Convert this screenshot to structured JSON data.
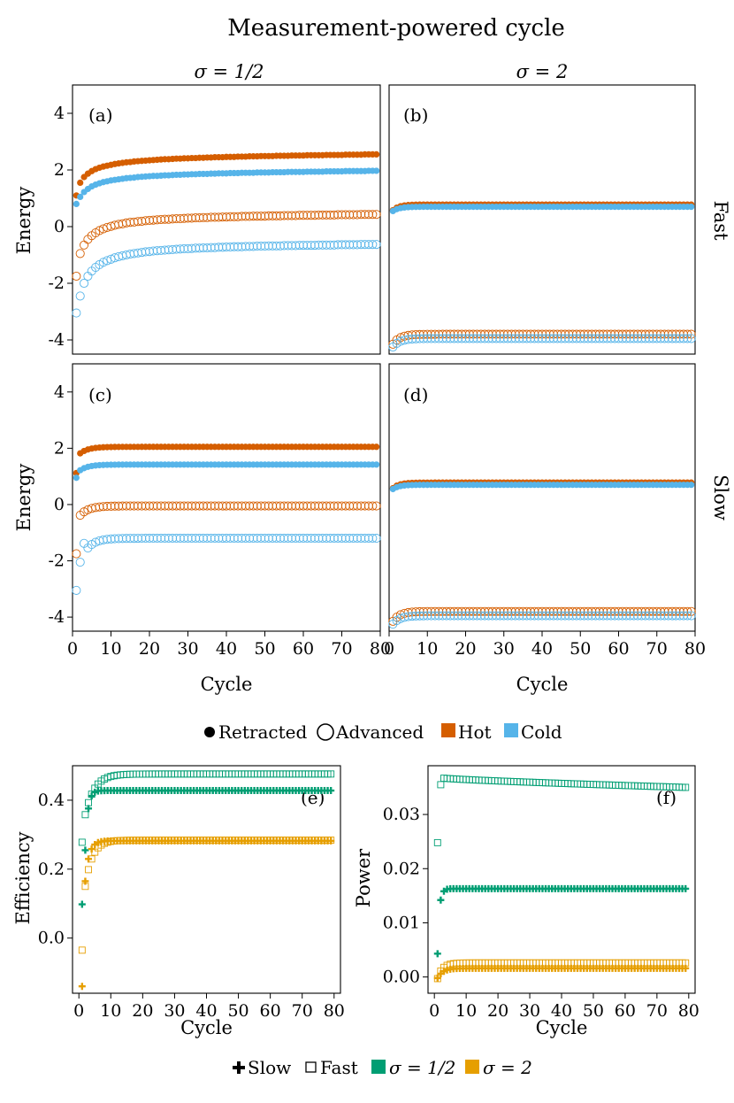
{
  "figure_title": "Measurement-powered cycle",
  "column_headers": [
    "σ = 1/2",
    "σ = 2"
  ],
  "row_headers": [
    "Fast",
    "Slow"
  ],
  "colors": {
    "hot": "#D55E00",
    "cold": "#56B4E9",
    "green": "#009E73",
    "orange": "#E69F00"
  },
  "legend_top": {
    "items": [
      {
        "label": "Retracted",
        "symbol": "filled-circle"
      },
      {
        "label": "Advanced",
        "symbol": "open-circle"
      },
      {
        "label": "Hot",
        "symbol": "square",
        "color": "#D55E00"
      },
      {
        "label": "Cold",
        "symbol": "square",
        "color": "#56B4E9"
      }
    ]
  },
  "legend_bottom": {
    "items": [
      {
        "label": "Slow",
        "symbol": "plus"
      },
      {
        "label": "Fast",
        "symbol": "open-square"
      },
      {
        "label": "σ = 1/2",
        "symbol": "square",
        "color": "#009E73"
      },
      {
        "label": "σ = 2",
        "symbol": "square",
        "color": "#E69F00"
      }
    ]
  },
  "chart_data": [
    {
      "panel": "(a)",
      "type": "scatter",
      "sigma": "1/2",
      "speed": "Fast",
      "xlabel": "",
      "ylabel": "Energy",
      "xlim": [
        0,
        80
      ],
      "ylim": [
        -4.5,
        5
      ],
      "yticks": [
        -4,
        -2,
        0,
        2,
        4
      ],
      "xticks": [],
      "cycles": [
        1,
        79
      ],
      "series": [
        {
          "name": "Hot Retracted",
          "color": "hot",
          "filled": true,
          "values": [
            1.1,
            1.55,
            1.75,
            1.87,
            1.96,
            2.03,
            2.08,
            2.12,
            2.15,
            2.18,
            2.21,
            2.23,
            2.25,
            2.27,
            2.28,
            2.3,
            2.31,
            2.32,
            2.33,
            2.34,
            2.35,
            2.36,
            2.37,
            2.38,
            2.38,
            2.39,
            2.4,
            2.4,
            2.41,
            2.41,
            2.42,
            2.42,
            2.43,
            2.43,
            2.44,
            2.44,
            2.45,
            2.45,
            2.45,
            2.46,
            2.46,
            2.46,
            2.47,
            2.47,
            2.47,
            2.48,
            2.48,
            2.48,
            2.49,
            2.49,
            2.49,
            2.49,
            2.5,
            2.5,
            2.5,
            2.5,
            2.51,
            2.51,
            2.51,
            2.51,
            2.52,
            2.52,
            2.52,
            2.52,
            2.52,
            2.53,
            2.53,
            2.53,
            2.53,
            2.53,
            2.54,
            2.54,
            2.54,
            2.54,
            2.54,
            2.55,
            2.55,
            2.55,
            2.55
          ]
        },
        {
          "name": "Cold Retracted",
          "color": "cold",
          "filled": true,
          "values": [
            0.8,
            1.05,
            1.22,
            1.33,
            1.42,
            1.48,
            1.53,
            1.57,
            1.6,
            1.63,
            1.65,
            1.67,
            1.69,
            1.71,
            1.72,
            1.73,
            1.75,
            1.76,
            1.77,
            1.78,
            1.79,
            1.79,
            1.8,
            1.81,
            1.81,
            1.82,
            1.83,
            1.83,
            1.84,
            1.84,
            1.85,
            1.85,
            1.86,
            1.86,
            1.86,
            1.87,
            1.87,
            1.88,
            1.88,
            1.88,
            1.89,
            1.89,
            1.89,
            1.9,
            1.9,
            1.9,
            1.9,
            1.91,
            1.91,
            1.91,
            1.91,
            1.92,
            1.92,
            1.92,
            1.92,
            1.93,
            1.93,
            1.93,
            1.93,
            1.93,
            1.94,
            1.94,
            1.94,
            1.94,
            1.94,
            1.95,
            1.95,
            1.95,
            1.95,
            1.95,
            1.96,
            1.96,
            1.96,
            1.96,
            1.96,
            1.96,
            1.97,
            1.97,
            1.97
          ]
        },
        {
          "name": "Hot Advanced",
          "color": "hot",
          "filled": false,
          "values": [
            -1.75,
            -0.95,
            -0.65,
            -0.45,
            -0.32,
            -0.22,
            -0.14,
            -0.08,
            -0.03,
            0.01,
            0.05,
            0.08,
            0.1,
            0.13,
            0.15,
            0.16,
            0.18,
            0.19,
            0.21,
            0.22,
            0.23,
            0.24,
            0.25,
            0.26,
            0.26,
            0.27,
            0.28,
            0.28,
            0.29,
            0.3,
            0.3,
            0.31,
            0.31,
            0.32,
            0.32,
            0.33,
            0.33,
            0.33,
            0.34,
            0.34,
            0.35,
            0.35,
            0.35,
            0.36,
            0.36,
            0.36,
            0.37,
            0.37,
            0.37,
            0.37,
            0.38,
            0.38,
            0.38,
            0.38,
            0.39,
            0.39,
            0.39,
            0.39,
            0.4,
            0.4,
            0.4,
            0.4,
            0.4,
            0.41,
            0.41,
            0.41,
            0.41,
            0.41,
            0.42,
            0.42,
            0.42,
            0.42,
            0.42,
            0.42,
            0.43,
            0.43,
            0.43,
            0.43,
            0.43
          ]
        },
        {
          "name": "Cold Advanced",
          "color": "cold",
          "filled": false,
          "values": [
            -3.05,
            -2.45,
            -2.0,
            -1.75,
            -1.57,
            -1.44,
            -1.34,
            -1.26,
            -1.2,
            -1.15,
            -1.1,
            -1.06,
            -1.03,
            -1.0,
            -0.97,
            -0.95,
            -0.93,
            -0.91,
            -0.89,
            -0.88,
            -0.86,
            -0.85,
            -0.84,
            -0.83,
            -0.82,
            -0.81,
            -0.8,
            -0.79,
            -0.78,
            -0.78,
            -0.77,
            -0.76,
            -0.76,
            -0.75,
            -0.75,
            -0.74,
            -0.74,
            -0.73,
            -0.73,
            -0.72,
            -0.72,
            -0.71,
            -0.71,
            -0.71,
            -0.7,
            -0.7,
            -0.7,
            -0.69,
            -0.69,
            -0.69,
            -0.68,
            -0.68,
            -0.68,
            -0.68,
            -0.67,
            -0.67,
            -0.67,
            -0.67,
            -0.66,
            -0.66,
            -0.66,
            -0.66,
            -0.66,
            -0.65,
            -0.65,
            -0.65,
            -0.65,
            -0.65,
            -0.64,
            -0.64,
            -0.64,
            -0.64,
            -0.64,
            -0.64,
            -0.63,
            -0.63,
            -0.63,
            -0.63,
            -0.63
          ]
        }
      ]
    },
    {
      "panel": "(b)",
      "type": "scatter",
      "sigma": "2",
      "speed": "Fast",
      "xlabel": "",
      "ylabel": "",
      "xlim": [
        0,
        80
      ],
      "ylim": [
        -4.5,
        5
      ],
      "yticks": [],
      "xticks": [],
      "cycles": [
        1,
        79
      ],
      "series": [
        {
          "name": "Hot Retracted",
          "color": "hot",
          "filled": true,
          "plateau": 0.78,
          "start": 0.58,
          "rate": 0.6
        },
        {
          "name": "Cold Retracted",
          "color": "cold",
          "filled": true,
          "plateau": 0.7,
          "start": 0.55,
          "rate": 0.6
        },
        {
          "name": "Hot Advanced",
          "color": "hot",
          "filled": false,
          "plateau": -3.8,
          "start": -4.15,
          "rate": 0.55
        },
        {
          "name": "Cold Advanced",
          "color": "cold",
          "filled": false,
          "plateau": -3.95,
          "start": -4.25,
          "rate": 0.55
        }
      ]
    },
    {
      "panel": "(c)",
      "type": "scatter",
      "sigma": "1/2",
      "speed": "Slow",
      "xlabel": "Cycle",
      "ylabel": "Energy",
      "xlim": [
        0,
        80
      ],
      "ylim": [
        -4.5,
        5
      ],
      "yticks": [
        -4,
        -2,
        0,
        2,
        4
      ],
      "xticks": [
        0,
        10,
        20,
        30,
        40,
        50,
        60,
        70,
        80
      ],
      "cycles": [
        1,
        79
      ],
      "series": [
        {
          "name": "Hot Retracted",
          "color": "hot",
          "filled": true,
          "plateau": 2.05,
          "start": 1.12,
          "second": 1.82,
          "rate": 0.45
        },
        {
          "name": "Cold Retracted",
          "color": "cold",
          "filled": true,
          "plateau": 1.42,
          "start": 0.95,
          "second": 1.22,
          "rate": 0.45
        },
        {
          "name": "Hot Advanced",
          "color": "hot",
          "filled": false,
          "plateau": -0.05,
          "start": -1.75,
          "second": -0.38,
          "rate": 0.45
        },
        {
          "name": "Cold Advanced",
          "color": "cold",
          "filled": false,
          "plateau": -1.2,
          "start": -3.05,
          "second": -2.05,
          "third": -1.38,
          "rate": 0.45
        }
      ]
    },
    {
      "panel": "(d)",
      "type": "scatter",
      "sigma": "2",
      "speed": "Slow",
      "xlabel": "Cycle",
      "ylabel": "",
      "xlim": [
        0,
        80
      ],
      "ylim": [
        -4.5,
        5
      ],
      "yticks": [],
      "xticks": [
        0,
        10,
        20,
        30,
        40,
        50,
        60,
        70,
        80
      ],
      "cycles": [
        1,
        79
      ],
      "series": [
        {
          "name": "Hot Retracted",
          "color": "hot",
          "filled": true,
          "plateau": 0.78,
          "start": 0.58,
          "rate": 0.6
        },
        {
          "name": "Cold Retracted",
          "color": "cold",
          "filled": true,
          "plateau": 0.7,
          "start": 0.55,
          "rate": 0.6
        },
        {
          "name": "Hot Advanced",
          "color": "hot",
          "filled": false,
          "plateau": -3.8,
          "start": -4.15,
          "rate": 0.55
        },
        {
          "name": "Cold Advanced",
          "color": "cold",
          "filled": false,
          "plateau": -3.95,
          "start": -4.25,
          "rate": 0.55
        }
      ]
    },
    {
      "panel": "(e)",
      "type": "scatter",
      "xlabel": "Cycle",
      "ylabel": "Efficiency",
      "xlim": [
        -2,
        82
      ],
      "ylim": [
        -0.16,
        0.5
      ],
      "yticks": [
        0.0,
        0.2,
        0.4
      ],
      "ytick_labels": [
        "0.0",
        "0.2",
        "0.4"
      ],
      "xticks": [
        0,
        10,
        20,
        30,
        40,
        50,
        60,
        70,
        80
      ],
      "cycles": [
        1,
        79
      ],
      "series": [
        {
          "name": "Slow σ = 1/2",
          "color": "green",
          "marker": "plus",
          "plateau": 0.428,
          "start": 0.098,
          "second": 0.255,
          "rate": 1.2
        },
        {
          "name": "Fast σ = 1/2",
          "color": "green",
          "marker": "open-square",
          "plateau": 0.476,
          "start": 0.278,
          "second": 0.358,
          "rate": 0.35
        },
        {
          "name": "Slow σ = 2",
          "color": "orange",
          "marker": "plus",
          "plateau": 0.282,
          "start": -0.14,
          "second": 0.165,
          "rate": 0.8
        },
        {
          "name": "Fast σ = 2",
          "color": "orange",
          "marker": "open-square",
          "plateau": 0.284,
          "start": -0.035,
          "second": 0.15,
          "rate": 0.45
        }
      ]
    },
    {
      "panel": "(f)",
      "type": "scatter",
      "xlabel": "Cycle",
      "ylabel": "Power",
      "xlim": [
        -2,
        82
      ],
      "ylim": [
        -0.003,
        0.039
      ],
      "yticks": [
        0.0,
        0.01,
        0.02,
        0.03
      ],
      "ytick_labels": [
        "0.00",
        "0.01",
        "0.02",
        "0.03"
      ],
      "xticks": [
        0,
        10,
        20,
        30,
        40,
        50,
        60,
        70,
        80
      ],
      "cycles": [
        1,
        79
      ],
      "series": [
        {
          "name": "Slow σ = 1/2",
          "color": "green",
          "marker": "plus",
          "plateau": 0.0163,
          "start": 0.0043,
          "second": 0.0142,
          "rate": 1.5
        },
        {
          "name": "Fast σ = 1/2",
          "color": "green",
          "marker": "open-square",
          "profile": "peak-decay",
          "start": 0.0248,
          "second": 0.0355,
          "peak": 0.0367,
          "end": 0.035
        },
        {
          "name": "Slow σ = 2",
          "color": "orange",
          "marker": "plus",
          "plateau": 0.0016,
          "start": -0.0002,
          "second": 0.0006,
          "rate": 0.6
        },
        {
          "name": "Fast σ = 2",
          "color": "orange",
          "marker": "open-square",
          "plateau": 0.0026,
          "start": -0.0003,
          "second": 0.0011,
          "rate": 0.6
        }
      ]
    }
  ]
}
